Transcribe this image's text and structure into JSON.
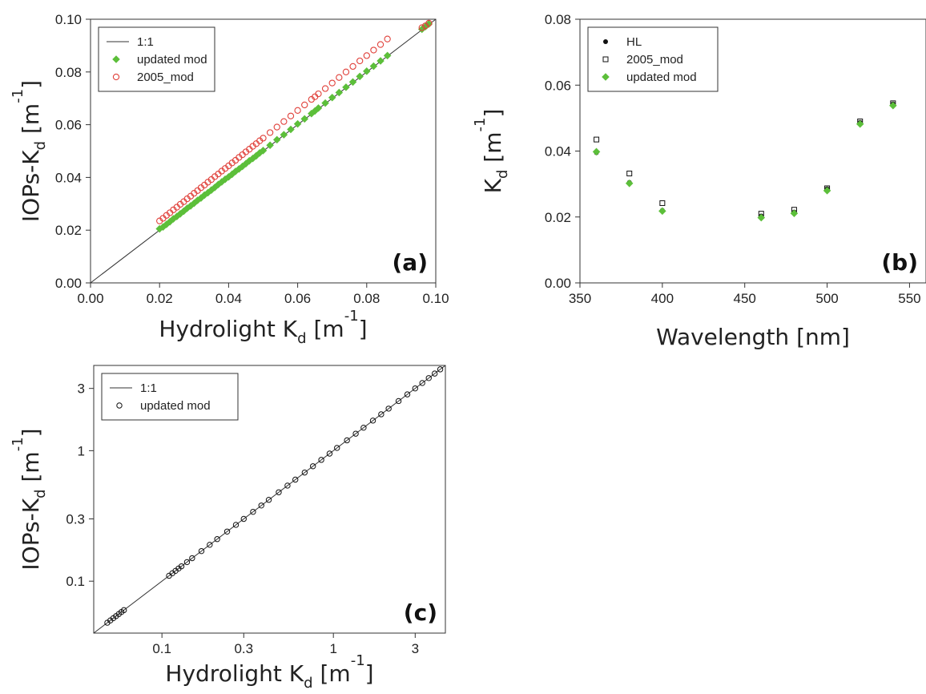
{
  "colors": {
    "green": "#5cbf3a",
    "red": "#e0403a",
    "black": "#111111",
    "line": "#333333"
  },
  "chart_data": [
    {
      "type": "scatter",
      "panel_label": "(a)",
      "xlabel": {
        "main": "Hydrolight K",
        "sub": "d",
        "unit_open": "  [m",
        "sup": "-1",
        "unit_close": "]"
      },
      "ylabel": {
        "main": "IOPs-K",
        "sub": "d",
        "unit_open": "  [m",
        "sup": "-1",
        "unit_close": "]"
      },
      "xlim": [
        0,
        0.1
      ],
      "ylim": [
        0,
        0.1
      ],
      "x_ticks": [
        "0.00",
        "0.02",
        "0.04",
        "0.06",
        "0.08",
        "0.10"
      ],
      "y_ticks": [
        "0.00",
        "0.02",
        "0.04",
        "0.06",
        "0.08",
        "0.10"
      ],
      "legend": [
        "1:1",
        "updated mod",
        "2005_mod"
      ],
      "legend_position": "top-left",
      "series": [
        {
          "name": "1:1",
          "kind": "line",
          "x": [
            0,
            0.1
          ],
          "y": [
            0,
            0.1
          ]
        },
        {
          "name": "updated mod",
          "kind": "diamond",
          "x": [
            0.02,
            0.021,
            0.022,
            0.023,
            0.024,
            0.025,
            0.026,
            0.027,
            0.028,
            0.029,
            0.03,
            0.031,
            0.032,
            0.033,
            0.034,
            0.035,
            0.036,
            0.037,
            0.038,
            0.039,
            0.04,
            0.041,
            0.042,
            0.043,
            0.044,
            0.045,
            0.046,
            0.047,
            0.048,
            0.049,
            0.05,
            0.052,
            0.054,
            0.056,
            0.058,
            0.06,
            0.062,
            0.064,
            0.065,
            0.066,
            0.068,
            0.07,
            0.072,
            0.074,
            0.076,
            0.078,
            0.08,
            0.082,
            0.084,
            0.086,
            0.096,
            0.097,
            0.098
          ],
          "y": [
            0.0205,
            0.0212,
            0.0222,
            0.0232,
            0.0243,
            0.0252,
            0.0262,
            0.0272,
            0.0283,
            0.0292,
            0.0302,
            0.0313,
            0.0322,
            0.0333,
            0.0342,
            0.0352,
            0.0362,
            0.0373,
            0.0383,
            0.0393,
            0.0402,
            0.0412,
            0.0423,
            0.0432,
            0.0442,
            0.0452,
            0.0463,
            0.0472,
            0.0482,
            0.0493,
            0.0502,
            0.0522,
            0.0543,
            0.0562,
            0.0582,
            0.0603,
            0.0622,
            0.0642,
            0.0652,
            0.0663,
            0.0682,
            0.0703,
            0.0722,
            0.0742,
            0.0762,
            0.0783,
            0.0803,
            0.0822,
            0.0842,
            0.0862,
            0.0962,
            0.0972,
            0.0982
          ]
        },
        {
          "name": "2005_mod",
          "kind": "circle",
          "x": [
            0.02,
            0.021,
            0.022,
            0.023,
            0.024,
            0.025,
            0.026,
            0.027,
            0.028,
            0.029,
            0.03,
            0.031,
            0.032,
            0.033,
            0.034,
            0.035,
            0.036,
            0.037,
            0.038,
            0.039,
            0.04,
            0.041,
            0.042,
            0.043,
            0.044,
            0.045,
            0.046,
            0.047,
            0.048,
            0.049,
            0.05,
            0.052,
            0.054,
            0.056,
            0.058,
            0.06,
            0.062,
            0.064,
            0.065,
            0.066,
            0.068,
            0.07,
            0.072,
            0.074,
            0.076,
            0.078,
            0.08,
            0.082,
            0.084,
            0.086,
            0.096,
            0.097,
            0.098
          ],
          "y": [
            0.0235,
            0.0245,
            0.0256,
            0.0266,
            0.0277,
            0.0287,
            0.0298,
            0.0308,
            0.0319,
            0.0329,
            0.034,
            0.035,
            0.0361,
            0.0371,
            0.0382,
            0.0392,
            0.0403,
            0.0413,
            0.0424,
            0.0434,
            0.0444,
            0.0455,
            0.0465,
            0.0476,
            0.0486,
            0.0497,
            0.0507,
            0.0518,
            0.0528,
            0.0539,
            0.0549,
            0.057,
            0.0591,
            0.0612,
            0.0633,
            0.0654,
            0.0675,
            0.0696,
            0.0706,
            0.0717,
            0.0737,
            0.0758,
            0.0779,
            0.08,
            0.0821,
            0.0842,
            0.0862,
            0.0883,
            0.0904,
            0.0925,
            0.0968,
            0.0975,
            0.0985
          ]
        }
      ]
    },
    {
      "type": "scatter",
      "panel_label": "(b)",
      "xlabel": {
        "main": "Wavelength  [nm]"
      },
      "ylabel": {
        "main": "K",
        "sub": "d",
        "unit_open": "  [m",
        "sup": "-1",
        "unit_close": "]"
      },
      "xlim": [
        350,
        560
      ],
      "ylim": [
        0,
        0.08
      ],
      "x_ticks": [
        "350",
        "400",
        "450",
        "500",
        "550"
      ],
      "x_tick_values": [
        350,
        400,
        450,
        500,
        550
      ],
      "y_ticks": [
        "0.00",
        "0.02",
        "0.04",
        "0.06",
        "0.08"
      ],
      "legend": [
        "HL",
        "2005_mod",
        "updated mod"
      ],
      "legend_position": "top-left",
      "series": [
        {
          "name": "HL",
          "kind": "dot",
          "x": [
            360,
            380,
            400,
            460,
            480,
            500,
            520,
            540
          ],
          "y": [
            0.0395,
            0.0305,
            0.022,
            0.0203,
            0.0215,
            0.0285,
            0.0487,
            0.0543
          ]
        },
        {
          "name": "2005_mod",
          "kind": "square",
          "x": [
            360,
            380,
            400,
            460,
            480,
            500,
            520,
            540
          ],
          "y": [
            0.0435,
            0.0332,
            0.0242,
            0.021,
            0.0222,
            0.0287,
            0.049,
            0.0545
          ]
        },
        {
          "name": "updated mod",
          "kind": "diamond",
          "x": [
            360,
            380,
            400,
            460,
            480,
            500,
            520,
            540
          ],
          "y": [
            0.0398,
            0.0302,
            0.0218,
            0.0198,
            0.0211,
            0.028,
            0.0482,
            0.0538
          ]
        }
      ]
    },
    {
      "type": "scatter",
      "panel_label": "(c)",
      "log_scale": true,
      "xlabel": {
        "main": "Hydrolight K",
        "sub": "d",
        "unit_open": "  [m",
        "sup": "-1",
        "unit_close": "]"
      },
      "ylabel": {
        "main": "IOPs-K",
        "sub": "d",
        "unit_open": "  [m",
        "sup": "-1",
        "unit_close": "]"
      },
      "xlim": [
        0.04,
        4.5
      ],
      "ylim": [
        0.04,
        4.5
      ],
      "x_ticks": [
        "0.1",
        "0.3",
        "1",
        "3"
      ],
      "x_tick_values": [
        0.1,
        0.3,
        1,
        3
      ],
      "y_ticks": [
        "0.1",
        "0.3",
        "1",
        "3"
      ],
      "y_tick_values": [
        0.1,
        0.3,
        1,
        3
      ],
      "legend": [
        "1:1",
        "updated mod"
      ],
      "legend_position": "top-left",
      "series": [
        {
          "name": "1:1",
          "kind": "line",
          "x": [
            0.04,
            4.5
          ],
          "y": [
            0.04,
            4.5
          ]
        },
        {
          "name": "updated mod",
          "kind": "open-circle",
          "x": [
            0.048,
            0.05,
            0.052,
            0.054,
            0.056,
            0.058,
            0.06,
            0.11,
            0.115,
            0.12,
            0.125,
            0.13,
            0.14,
            0.15,
            0.17,
            0.19,
            0.21,
            0.24,
            0.27,
            0.3,
            0.34,
            0.38,
            0.42,
            0.48,
            0.54,
            0.6,
            0.68,
            0.76,
            0.85,
            0.95,
            1.05,
            1.2,
            1.35,
            1.5,
            1.7,
            1.9,
            2.1,
            2.4,
            2.7,
            3.0,
            3.3,
            3.6,
            3.9,
            4.2
          ],
          "y": [
            0.048,
            0.05,
            0.052,
            0.054,
            0.056,
            0.058,
            0.06,
            0.11,
            0.115,
            0.12,
            0.125,
            0.13,
            0.14,
            0.15,
            0.17,
            0.19,
            0.21,
            0.24,
            0.27,
            0.3,
            0.34,
            0.38,
            0.42,
            0.48,
            0.54,
            0.6,
            0.68,
            0.76,
            0.85,
            0.95,
            1.05,
            1.2,
            1.35,
            1.5,
            1.7,
            1.9,
            2.1,
            2.4,
            2.7,
            3.0,
            3.3,
            3.6,
            3.9,
            4.2
          ]
        }
      ]
    }
  ]
}
